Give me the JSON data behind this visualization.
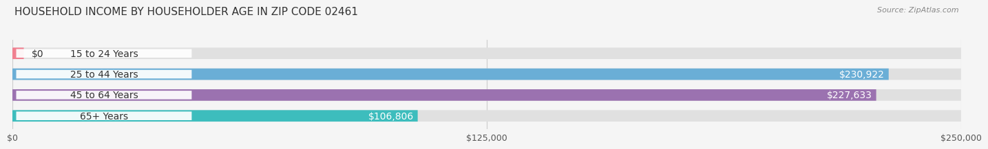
{
  "title": "HOUSEHOLD INCOME BY HOUSEHOLDER AGE IN ZIP CODE 02461",
  "source": "Source: ZipAtlas.com",
  "categories": [
    "15 to 24 Years",
    "25 to 44 Years",
    "45 to 64 Years",
    "65+ Years"
  ],
  "values": [
    0,
    230922,
    227633,
    106806
  ],
  "bar_colors": [
    "#f08090",
    "#6aaed6",
    "#9b72b0",
    "#3dbdbd"
  ],
  "background_color": "#f5f5f5",
  "bar_background_color": "#e0e0e0",
  "xlim": [
    0,
    250000
  ],
  "xtick_labels": [
    "$0",
    "$125,000",
    "$250,000"
  ],
  "xtick_vals": [
    0,
    125000,
    250000
  ],
  "value_labels": [
    "$0",
    "$230,922",
    "$227,633",
    "$106,806"
  ],
  "title_fontsize": 11,
  "source_fontsize": 8,
  "label_fontsize": 10,
  "tick_fontsize": 9,
  "bar_height": 0.55,
  "label_color_dark": "#333333",
  "label_color_light": "#ffffff"
}
